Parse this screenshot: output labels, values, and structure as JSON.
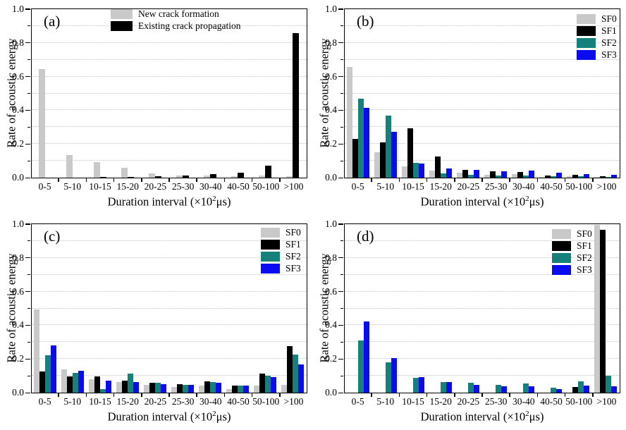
{
  "figure": {
    "ylabel": "Rate of acoustic energy",
    "xlabel_full": "Duration interval (×10²μs)",
    "xlabel_prefix": "Duration interval (×10",
    "xlabel_sup": "2",
    "xlabel_suffix": "μs)"
  },
  "colors": {
    "gray": "#c9c9c9",
    "black": "#000000",
    "teal": "#16807a",
    "blue": "#0b0bf0",
    "grid": "#c6c6c6",
    "axis": "#000000"
  },
  "axis": {
    "ylim": [
      0,
      1
    ],
    "y_major_ticks": [
      "0.0",
      "0.2",
      "0.4",
      "0.6",
      "0.8",
      "1.0"
    ],
    "y_minor_step": 0.1,
    "grid": "horizontal dotted every 0.1"
  },
  "categories": [
    "0-5",
    "5-10",
    "10-15",
    "15-20",
    "20-25",
    "25-30",
    "30-40",
    "40-50",
    "50-100",
    ">100"
  ],
  "chart_data": [
    {
      "type": "bar",
      "panel": "(a)",
      "title": "",
      "xlabel": "Duration interval (×10²μs)",
      "ylabel": "Rate of acoustic energy",
      "ylim": [
        0,
        1
      ],
      "legend_position": "top-center",
      "categories": [
        "0-5",
        "5-10",
        "10-15",
        "15-20",
        "20-25",
        "25-30",
        "30-40",
        "40-50",
        "50-100",
        ">100"
      ],
      "series": [
        {
          "name": "New crack formation",
          "color": "gray",
          "values": [
            0.645,
            0.135,
            0.092,
            0.057,
            0.027,
            0.012,
            0.014,
            0.008,
            0.013,
            0.008
          ]
        },
        {
          "name": "Existing crack propagation",
          "color": "black",
          "values": [
            0.0,
            0.0,
            0.002,
            0.005,
            0.01,
            0.013,
            0.022,
            0.03,
            0.07,
            0.86
          ]
        }
      ]
    },
    {
      "type": "bar",
      "panel": "(b)",
      "title": "",
      "xlabel": "Duration interval (×10²μs)",
      "ylabel": "Rate of acoustic energy",
      "ylim": [
        0,
        1
      ],
      "legend_position": "top-right",
      "categories": [
        "0-5",
        "5-10",
        "10-15",
        "15-20",
        "20-25",
        "25-30",
        "30-40",
        "40-50",
        "50-100",
        ">100"
      ],
      "series": [
        {
          "name": "SF0",
          "color": "gray",
          "values": [
            0.66,
            0.153,
            0.068,
            0.044,
            0.03,
            0.017,
            0.02,
            0.006,
            0.008,
            0.004
          ]
        },
        {
          "name": "SF1",
          "color": "black",
          "values": [
            0.232,
            0.21,
            0.295,
            0.126,
            0.045,
            0.036,
            0.032,
            0.014,
            0.018,
            0.009
          ]
        },
        {
          "name": "SF2",
          "color": "teal",
          "values": [
            0.472,
            0.37,
            0.09,
            0.025,
            0.018,
            0.013,
            0.011,
            0.008,
            0.007,
            0.004
          ]
        },
        {
          "name": "SF3",
          "color": "blue",
          "values": [
            0.415,
            0.275,
            0.085,
            0.055,
            0.046,
            0.036,
            0.043,
            0.028,
            0.022,
            0.016
          ]
        }
      ]
    },
    {
      "type": "bar",
      "panel": "(c)",
      "title": "",
      "xlabel": "Duration interval (×10²μs)",
      "ylabel": "Rate of acoustic energy",
      "ylim": [
        0,
        1
      ],
      "legend_position": "top-right",
      "categories": [
        "0-5",
        "5-10",
        "10-15",
        "15-20",
        "20-25",
        "25-30",
        "30-40",
        "40-50",
        "50-100",
        ">100"
      ],
      "series": [
        {
          "name": "SF0",
          "color": "gray",
          "values": [
            0.495,
            0.138,
            0.078,
            0.062,
            0.048,
            0.034,
            0.041,
            0.023,
            0.041,
            0.048
          ]
        },
        {
          "name": "SF1",
          "color": "black",
          "values": [
            0.125,
            0.098,
            0.098,
            0.07,
            0.06,
            0.05,
            0.066,
            0.044,
            0.113,
            0.278
          ]
        },
        {
          "name": "SF2",
          "color": "teal",
          "values": [
            0.223,
            0.117,
            0.022,
            0.113,
            0.057,
            0.046,
            0.062,
            0.04,
            0.1,
            0.225
          ]
        },
        {
          "name": "SF3",
          "color": "blue",
          "values": [
            0.283,
            0.13,
            0.072,
            0.061,
            0.052,
            0.045,
            0.059,
            0.04,
            0.092,
            0.168
          ]
        }
      ]
    },
    {
      "type": "bar",
      "panel": "(d)",
      "title": "",
      "xlabel": "Duration interval (×10²μs)",
      "ylabel": "Rate of acoustic energy",
      "ylim": [
        0,
        1
      ],
      "legend_position": "top-right",
      "categories": [
        "0-5",
        "5-10",
        "10-15",
        "15-20",
        "20-25",
        "25-30",
        "30-40",
        "40-50",
        "50-100",
        ">100"
      ],
      "series": [
        {
          "name": "SF0",
          "color": "gray",
          "values": [
            0.0,
            0.0,
            0.0,
            0.0,
            0.0,
            0.0,
            0.0,
            0.0,
            0.0,
            1.0
          ]
        },
        {
          "name": "SF1",
          "color": "black",
          "values": [
            0.0,
            0.0,
            0.0,
            0.0,
            0.0,
            0.0,
            0.0,
            0.0,
            0.032,
            0.97
          ]
        },
        {
          "name": "SF2",
          "color": "teal",
          "values": [
            0.313,
            0.182,
            0.089,
            0.064,
            0.058,
            0.045,
            0.053,
            0.031,
            0.067,
            0.1
          ]
        },
        {
          "name": "SF3",
          "color": "blue",
          "values": [
            0.425,
            0.205,
            0.094,
            0.064,
            0.047,
            0.036,
            0.038,
            0.022,
            0.04,
            0.038
          ]
        }
      ]
    }
  ]
}
